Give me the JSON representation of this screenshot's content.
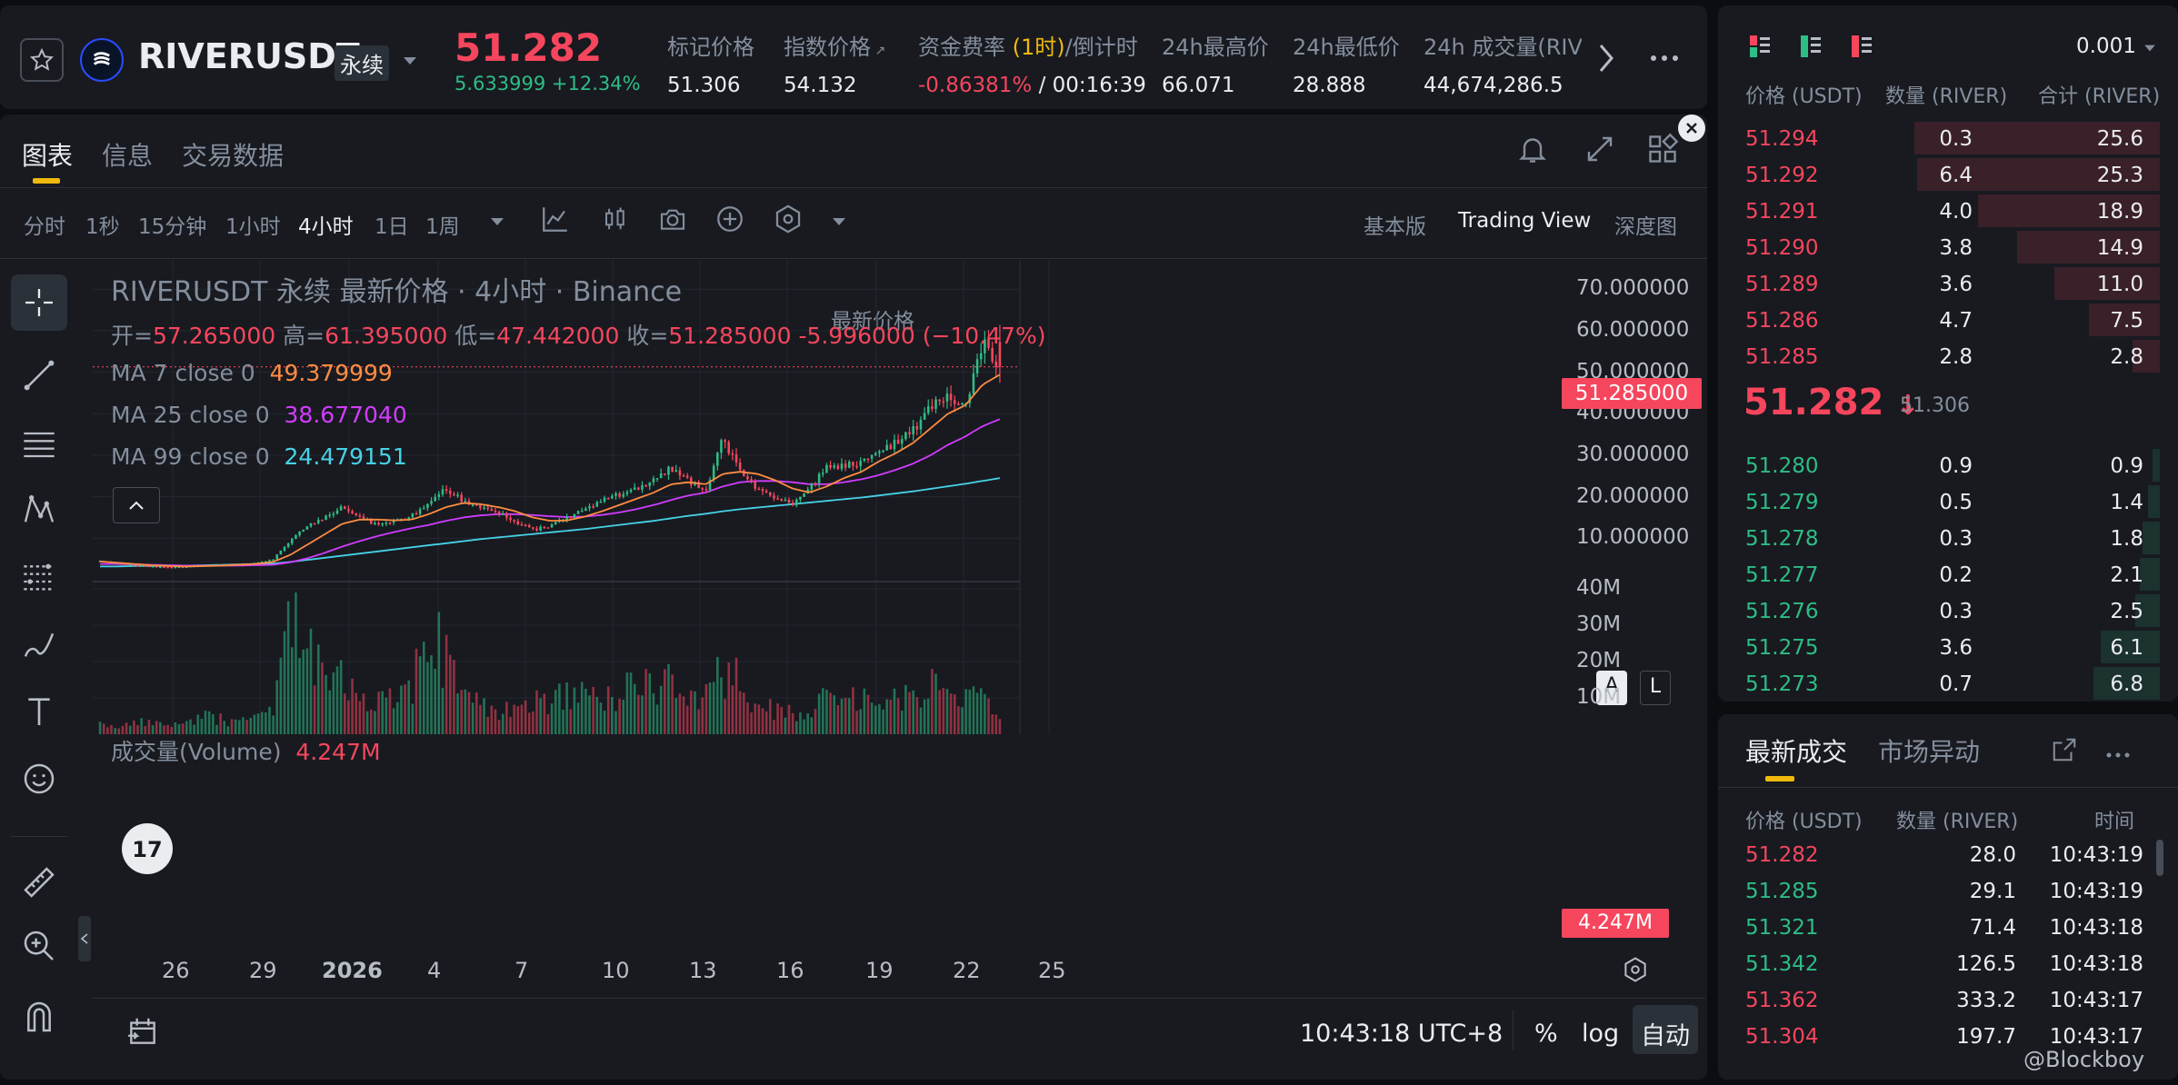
{
  "header": {
    "symbol": "RIVERUSDT",
    "contract_type": "永续",
    "last_price": "51.282",
    "change_abs": "5.633999",
    "change_pct": "+12.34%",
    "stats": [
      {
        "label": "标记价格",
        "value": "51.306"
      },
      {
        "label": "指数价格",
        "value": "54.132"
      },
      {
        "label_prefix": "资金费率",
        "label_highlight": "(1时)",
        "label_suffix": "/倒计时",
        "value_rate": "-0.86381%",
        "value_countdown": " / 00:16:39"
      },
      {
        "label": "24h最高价",
        "value": "66.071"
      },
      {
        "label": "24h最低价",
        "value": "28.888"
      },
      {
        "label": "24h 成交量(RIVER)",
        "value": "44,674,286.5"
      }
    ]
  },
  "chart_panel": {
    "tabs": [
      "图表",
      "信息",
      "交易数据"
    ],
    "intervals": [
      "分时",
      "1秒",
      "15分钟",
      "1小时",
      "4小时",
      "1日",
      "1周"
    ],
    "active_interval": "4小时",
    "price_type": "最新价格",
    "views": [
      "基本版",
      "Trading View",
      "深度图"
    ],
    "active_view": "Trading View",
    "legend_title": "RIVERUSDT 永续 最新价格 · 4小时 · Binance",
    "ohlc": {
      "open_label": "开=",
      "open": "57.265000",
      "high_label": "高=",
      "high": "61.395000",
      "low_label": "低=",
      "low": "47.442000",
      "close_label": "收=",
      "close": "51.285000",
      "change": "-5.996000 (−10.47%)"
    },
    "ma": [
      {
        "label": "MA 7 close 0",
        "value": "49.379999",
        "color": "#ff8c42"
      },
      {
        "label": "MA 25 close 0",
        "value": "38.677040",
        "color": "#d23cff"
      },
      {
        "label": "MA 99 close 0",
        "value": "24.479151",
        "color": "#47d1e6"
      }
    ],
    "price_axis": [
      "70.000000",
      "60.000000",
      "50.000000",
      "40.000000",
      "30.000000",
      "20.000000",
      "10.000000"
    ],
    "current_price_tag": "51.285000",
    "volume_label": "成交量(Volume)",
    "volume_value": "4.247M",
    "volume_axis": [
      "40M",
      "30M",
      "20M",
      "10M"
    ],
    "volume_tag": "4.247M",
    "date_axis": [
      "26",
      "29",
      "2026",
      "4",
      "7",
      "10",
      "13",
      "16",
      "19",
      "22",
      "25"
    ],
    "scale_buttons": [
      "A",
      "L"
    ],
    "timestamp": "10:43:18 UTC+8",
    "bottom_buttons": [
      "%",
      "log",
      "自动"
    ]
  },
  "chart_data": {
    "type": "candlestick",
    "title": "RIVERUSDT 永续 最新价格 · 4小时 · Binance",
    "x_labels": [
      "26",
      "29",
      "2026",
      "4",
      "7",
      "10",
      "13",
      "16",
      "19",
      "22",
      "25"
    ],
    "ylim": [
      0,
      70
    ],
    "volume_ylim": [
      0,
      40
    ],
    "volume_unit": "M",
    "close_path": [
      4.5,
      4.0,
      3.5,
      3.2,
      3.0,
      3.2,
      3.5,
      3.6,
      3.8,
      4.0,
      5.0,
      9.5,
      13.0,
      15.0,
      17.5,
      15.5,
      13.0,
      14.0,
      15.5,
      18.0,
      22.0,
      19.0,
      17.5,
      16.0,
      14.0,
      12.0,
      13.0,
      15.0,
      17.0,
      19.0,
      20.5,
      22.0,
      24.0,
      27.0,
      24.0,
      21.0,
      34.0,
      26.0,
      22.0,
      20.0,
      18.0,
      22.0,
      27.0,
      27.5,
      28.0,
      31.0,
      33.0,
      36.0,
      42.0,
      44.0,
      41.0,
      57.0,
      51.3
    ],
    "ma7": [
      4.4,
      4.1,
      3.8,
      3.5,
      3.3,
      3.2,
      3.3,
      3.4,
      3.6,
      3.8,
      4.3,
      6.0,
      8.5,
      11.0,
      13.5,
      14.5,
      14.5,
      14.3,
      14.5,
      15.8,
      17.5,
      18.5,
      18.2,
      17.5,
      16.5,
      15.0,
      14.2,
      14.3,
      15.2,
      16.5,
      18.0,
      19.5,
      21.0,
      23.0,
      23.5,
      23.0,
      25.5,
      26.0,
      25.5,
      24.0,
      22.0,
      21.0,
      22.5,
      24.5,
      26.0,
      28.5,
      30.5,
      33.0,
      36.5,
      40.0,
      42.0,
      47.0,
      49.4
    ],
    "ma25": [
      3.8,
      3.8,
      3.7,
      3.6,
      3.5,
      3.4,
      3.4,
      3.4,
      3.4,
      3.5,
      3.6,
      4.2,
      5.2,
      6.5,
      8.0,
      9.3,
      10.5,
      11.5,
      12.4,
      13.2,
      14.2,
      15.0,
      15.5,
      15.8,
      15.8,
      15.6,
      15.3,
      15.1,
      15.2,
      15.6,
      16.2,
      17.0,
      18.0,
      19.2,
      20.3,
      21.0,
      22.5,
      23.5,
      23.8,
      23.8,
      23.5,
      23.0,
      23.0,
      23.5,
      24.2,
      25.2,
      26.5,
      28.0,
      30.0,
      32.5,
      34.5,
      37.0,
      38.7
    ],
    "ma99": [
      3.2,
      3.2,
      3.3,
      3.3,
      3.4,
      3.4,
      3.5,
      3.6,
      3.7,
      3.8,
      3.9,
      4.3,
      4.8,
      5.3,
      5.8,
      6.3,
      6.8,
      7.3,
      7.8,
      8.3,
      8.8,
      9.3,
      9.8,
      10.2,
      10.6,
      11.0,
      11.4,
      11.8,
      12.2,
      12.7,
      13.2,
      13.7,
      14.2,
      14.8,
      15.4,
      15.9,
      16.5,
      17.0,
      17.4,
      17.8,
      18.2,
      18.6,
      19.0,
      19.4,
      19.8,
      20.3,
      20.8,
      21.3,
      21.9,
      22.5,
      23.1,
      23.8,
      24.5
    ],
    "volume_path": [
      3,
      2,
      4,
      3,
      2,
      3,
      5,
      4,
      3,
      4,
      6,
      30,
      25,
      20,
      15,
      10,
      8,
      9,
      12,
      28,
      22,
      12,
      8,
      7,
      6,
      9,
      8,
      12,
      10,
      9,
      11,
      14,
      12,
      15,
      9,
      10,
      18,
      14,
      8,
      7,
      6,
      8,
      9,
      8,
      10,
      9,
      11,
      12,
      13,
      10,
      9,
      12,
      4.2
    ],
    "last_open": 57.265,
    "last_high": 61.395,
    "last_low": 47.442,
    "last_close": 51.285
  },
  "orderbook": {
    "tick_size": "0.001",
    "headers": [
      "价格 (USDT)",
      "数量 (RIVER)",
      "合计 (RIVER)"
    ],
    "asks": [
      {
        "price": "51.294",
        "qty": "0.3",
        "total": "25.6",
        "depth": 1.0
      },
      {
        "price": "51.292",
        "qty": "6.4",
        "total": "25.3",
        "depth": 0.99
      },
      {
        "price": "51.291",
        "qty": "4.0",
        "total": "18.9",
        "depth": 0.74
      },
      {
        "price": "51.290",
        "qty": "3.8",
        "total": "14.9",
        "depth": 0.58
      },
      {
        "price": "51.289",
        "qty": "3.6",
        "total": "11.0",
        "depth": 0.43
      },
      {
        "price": "51.286",
        "qty": "4.7",
        "total": "7.5",
        "depth": 0.29
      },
      {
        "price": "51.285",
        "qty": "2.8",
        "total": "2.8",
        "depth": 0.11
      }
    ],
    "mid_price": "51.282",
    "mid_mark": "51.306",
    "bids": [
      {
        "price": "51.280",
        "qty": "0.9",
        "total": "0.9",
        "depth": 0.03
      },
      {
        "price": "51.279",
        "qty": "0.5",
        "total": "1.4",
        "depth": 0.05
      },
      {
        "price": "51.278",
        "qty": "0.3",
        "total": "1.8",
        "depth": 0.07
      },
      {
        "price": "51.277",
        "qty": "0.2",
        "total": "2.1",
        "depth": 0.08
      },
      {
        "price": "51.276",
        "qty": "0.3",
        "total": "2.5",
        "depth": 0.1
      },
      {
        "price": "51.275",
        "qty": "3.6",
        "total": "6.1",
        "depth": 0.24
      },
      {
        "price": "51.273",
        "qty": "0.7",
        "total": "6.8",
        "depth": 0.27
      }
    ]
  },
  "trades": {
    "tabs": [
      "最新成交",
      "市场异动"
    ],
    "headers": [
      "价格 (USDT)",
      "数量 (RIVER)",
      "时间"
    ],
    "rows": [
      {
        "price": "51.282",
        "qty": "28.0",
        "time": "10:43:19",
        "side": "sell"
      },
      {
        "price": "51.285",
        "qty": "29.1",
        "time": "10:43:19",
        "side": "buy"
      },
      {
        "price": "51.321",
        "qty": "71.4",
        "time": "10:43:18",
        "side": "buy"
      },
      {
        "price": "51.342",
        "qty": "126.5",
        "time": "10:43:18",
        "side": "buy"
      },
      {
        "price": "51.362",
        "qty": "333.2",
        "time": "10:43:17",
        "side": "sell"
      },
      {
        "price": "51.304",
        "qty": "197.7",
        "time": "10:43:17",
        "side": "sell"
      }
    ]
  },
  "watermark": "@Blockboy",
  "colors": {
    "up": "#2ebd85",
    "down": "#f6465d",
    "accent": "#f0b90b",
    "bg": "#0b0e11",
    "panel": "#181a20"
  }
}
